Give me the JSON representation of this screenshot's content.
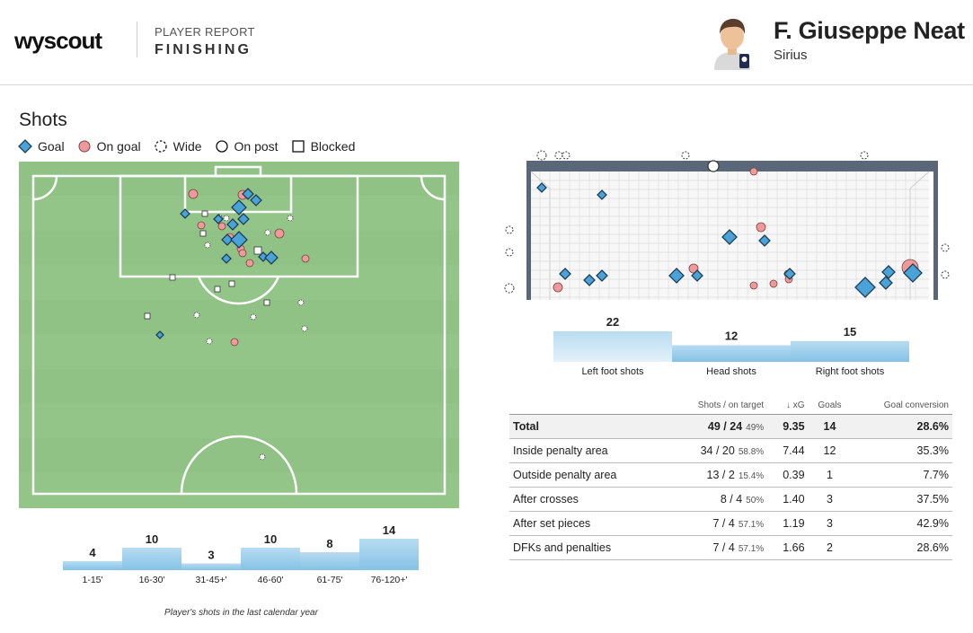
{
  "header": {
    "logo": "wyscout",
    "report_kind": "PLAYER REPORT",
    "report_sub": "FINISHING",
    "player_name": "F. Giuseppe Neat",
    "team": "Sirius"
  },
  "shots": {
    "title": "Shots",
    "legend": [
      {
        "label": "Goal",
        "icon": "goal-diamond-icon"
      },
      {
        "label": "On goal",
        "icon": "on-goal-circle-icon"
      },
      {
        "label": "Wide",
        "icon": "wide-dashed-circle-icon"
      },
      {
        "label": "On post",
        "icon": "on-post-circle-icon"
      },
      {
        "label": "Blocked",
        "icon": "blocked-square-icon"
      }
    ],
    "colors": {
      "goal": "#4aa3d8",
      "on_goal": "#ef9a9a",
      "pitch_light": "#98c98c",
      "pitch_dark": "#8dbf82",
      "bar": "#9fd0ee"
    }
  },
  "time_chart": {
    "type": "bar",
    "categories": [
      "1-15'",
      "16-30'",
      "31-45+'",
      "46-60'",
      "61-75'",
      "76-120+'"
    ],
    "values": [
      4,
      10,
      3,
      10,
      8,
      14
    ],
    "footnote": "Player's shots in the last calendar year"
  },
  "body_chart": {
    "type": "bar",
    "categories": [
      "Left foot shots",
      "Head shots",
      "Right foot shots"
    ],
    "values": [
      22,
      12,
      15
    ]
  },
  "table": {
    "headers": {
      "shots": "Shots / on target",
      "xg": "↓ xG",
      "goals": "Goals",
      "conv": "Goal conversion"
    },
    "rows": [
      {
        "label": "Total",
        "shots": "49 / 24",
        "pct": "49%",
        "xg": "9.35",
        "goals": "14",
        "conv": "28.6%"
      },
      {
        "label": "Inside penalty area",
        "shots": "34 / 20",
        "pct": "58.8%",
        "xg": "7.44",
        "goals": "12",
        "conv": "35.3%"
      },
      {
        "label": "Outside penalty area",
        "shots": "13 / 2",
        "pct": "15.4%",
        "xg": "0.39",
        "goals": "1",
        "conv": "7.7%"
      },
      {
        "label": "After crosses",
        "shots": "8 / 4",
        "pct": "50%",
        "xg": "1.40",
        "goals": "3",
        "conv": "37.5%"
      },
      {
        "label": "After set pieces",
        "shots": "7 / 4",
        "pct": "57.1%",
        "xg": "1.19",
        "goals": "3",
        "conv": "42.9%"
      },
      {
        "label": "DFKs and penalties",
        "shots": "7 / 4",
        "pct": "57.1%",
        "xg": "1.66",
        "goals": "2",
        "conv": "28.6%"
      }
    ]
  }
}
